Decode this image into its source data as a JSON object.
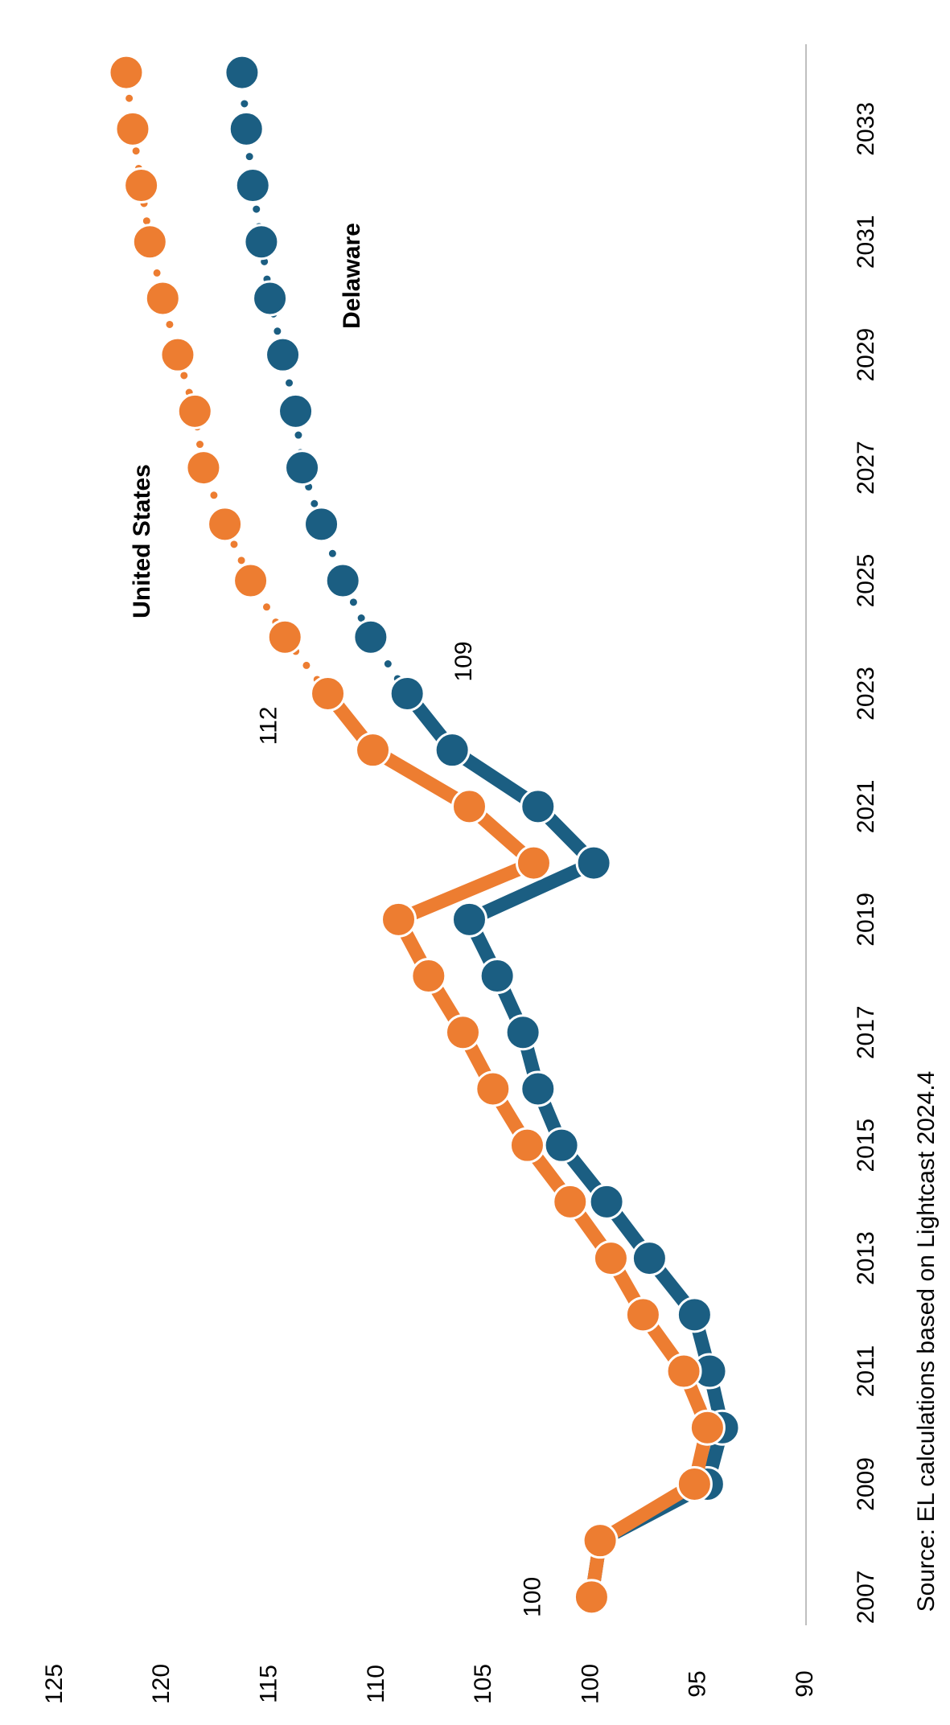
{
  "chart_data": {
    "type": "line",
    "source": "Source: EL calculations based on Lightcast 2024.4",
    "x": [
      2007,
      2008,
      2009,
      2010,
      2011,
      2012,
      2013,
      2014,
      2015,
      2016,
      2017,
      2018,
      2019,
      2020,
      2021,
      2022,
      2023,
      2024,
      2025,
      2026,
      2027,
      2028,
      2029,
      2030,
      2031,
      2032,
      2033,
      2034
    ],
    "xlim": [
      2006.5,
      2034.5
    ],
    "xticks": [
      2007,
      2009,
      2011,
      2013,
      2015,
      2017,
      2019,
      2021,
      2023,
      2025,
      2027,
      2029,
      2031,
      2033
    ],
    "ylim": [
      90,
      125
    ],
    "yticks": [
      90,
      95,
      100,
      105,
      110,
      115,
      120,
      125
    ],
    "projection_from_x": 2023,
    "series": [
      {
        "name": "Delaware",
        "color": "#1b5e82",
        "values": [
          100,
          99.6,
          94.6,
          93.9,
          94.5,
          95.2,
          97.3,
          99.3,
          101.4,
          102.5,
          103.2,
          104.4,
          105.7,
          99.9,
          102.5,
          106.5,
          108.6,
          110.3,
          111.6,
          112.6,
          113.5,
          113.8,
          114.4,
          115.0,
          115.4,
          115.8,
          116.1,
          116.3
        ],
        "value_labels": [
          null,
          null,
          null,
          null,
          null,
          null,
          null,
          null,
          null,
          null,
          null,
          null,
          null,
          null,
          null,
          null,
          "109",
          null,
          null,
          null,
          null,
          null,
          null,
          null,
          null,
          null,
          null,
          null
        ]
      },
      {
        "name": "United States",
        "color": "#ed7d31",
        "values": [
          100,
          99.6,
          95.2,
          94.6,
          95.7,
          97.6,
          99.1,
          101.0,
          103.0,
          104.6,
          106.0,
          107.6,
          109.0,
          102.7,
          105.7,
          110.2,
          112.3,
          114.3,
          115.9,
          117.1,
          118.1,
          118.5,
          119.3,
          120.0,
          120.6,
          121.0,
          121.4,
          121.7
        ],
        "value_labels": [
          "100",
          null,
          null,
          null,
          null,
          null,
          null,
          null,
          null,
          null,
          null,
          null,
          null,
          null,
          null,
          null,
          "112",
          null,
          null,
          null,
          null,
          null,
          null,
          null,
          null,
          null,
          null,
          null
        ]
      }
    ]
  }
}
